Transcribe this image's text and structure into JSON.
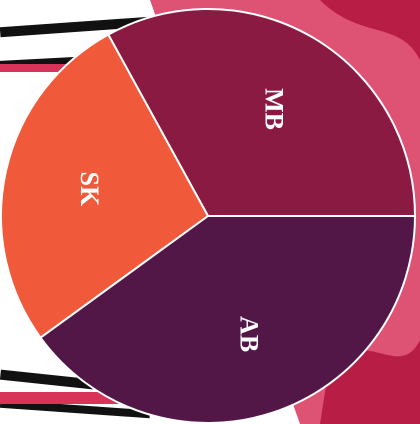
{
  "chart_data": {
    "type": "pie",
    "categories": [
      "MB",
      "SK",
      "AB"
    ],
    "values": [
      33,
      27,
      40
    ],
    "colors": [
      "#8b1a42",
      "#f05a3a",
      "#521746"
    ]
  }
}
